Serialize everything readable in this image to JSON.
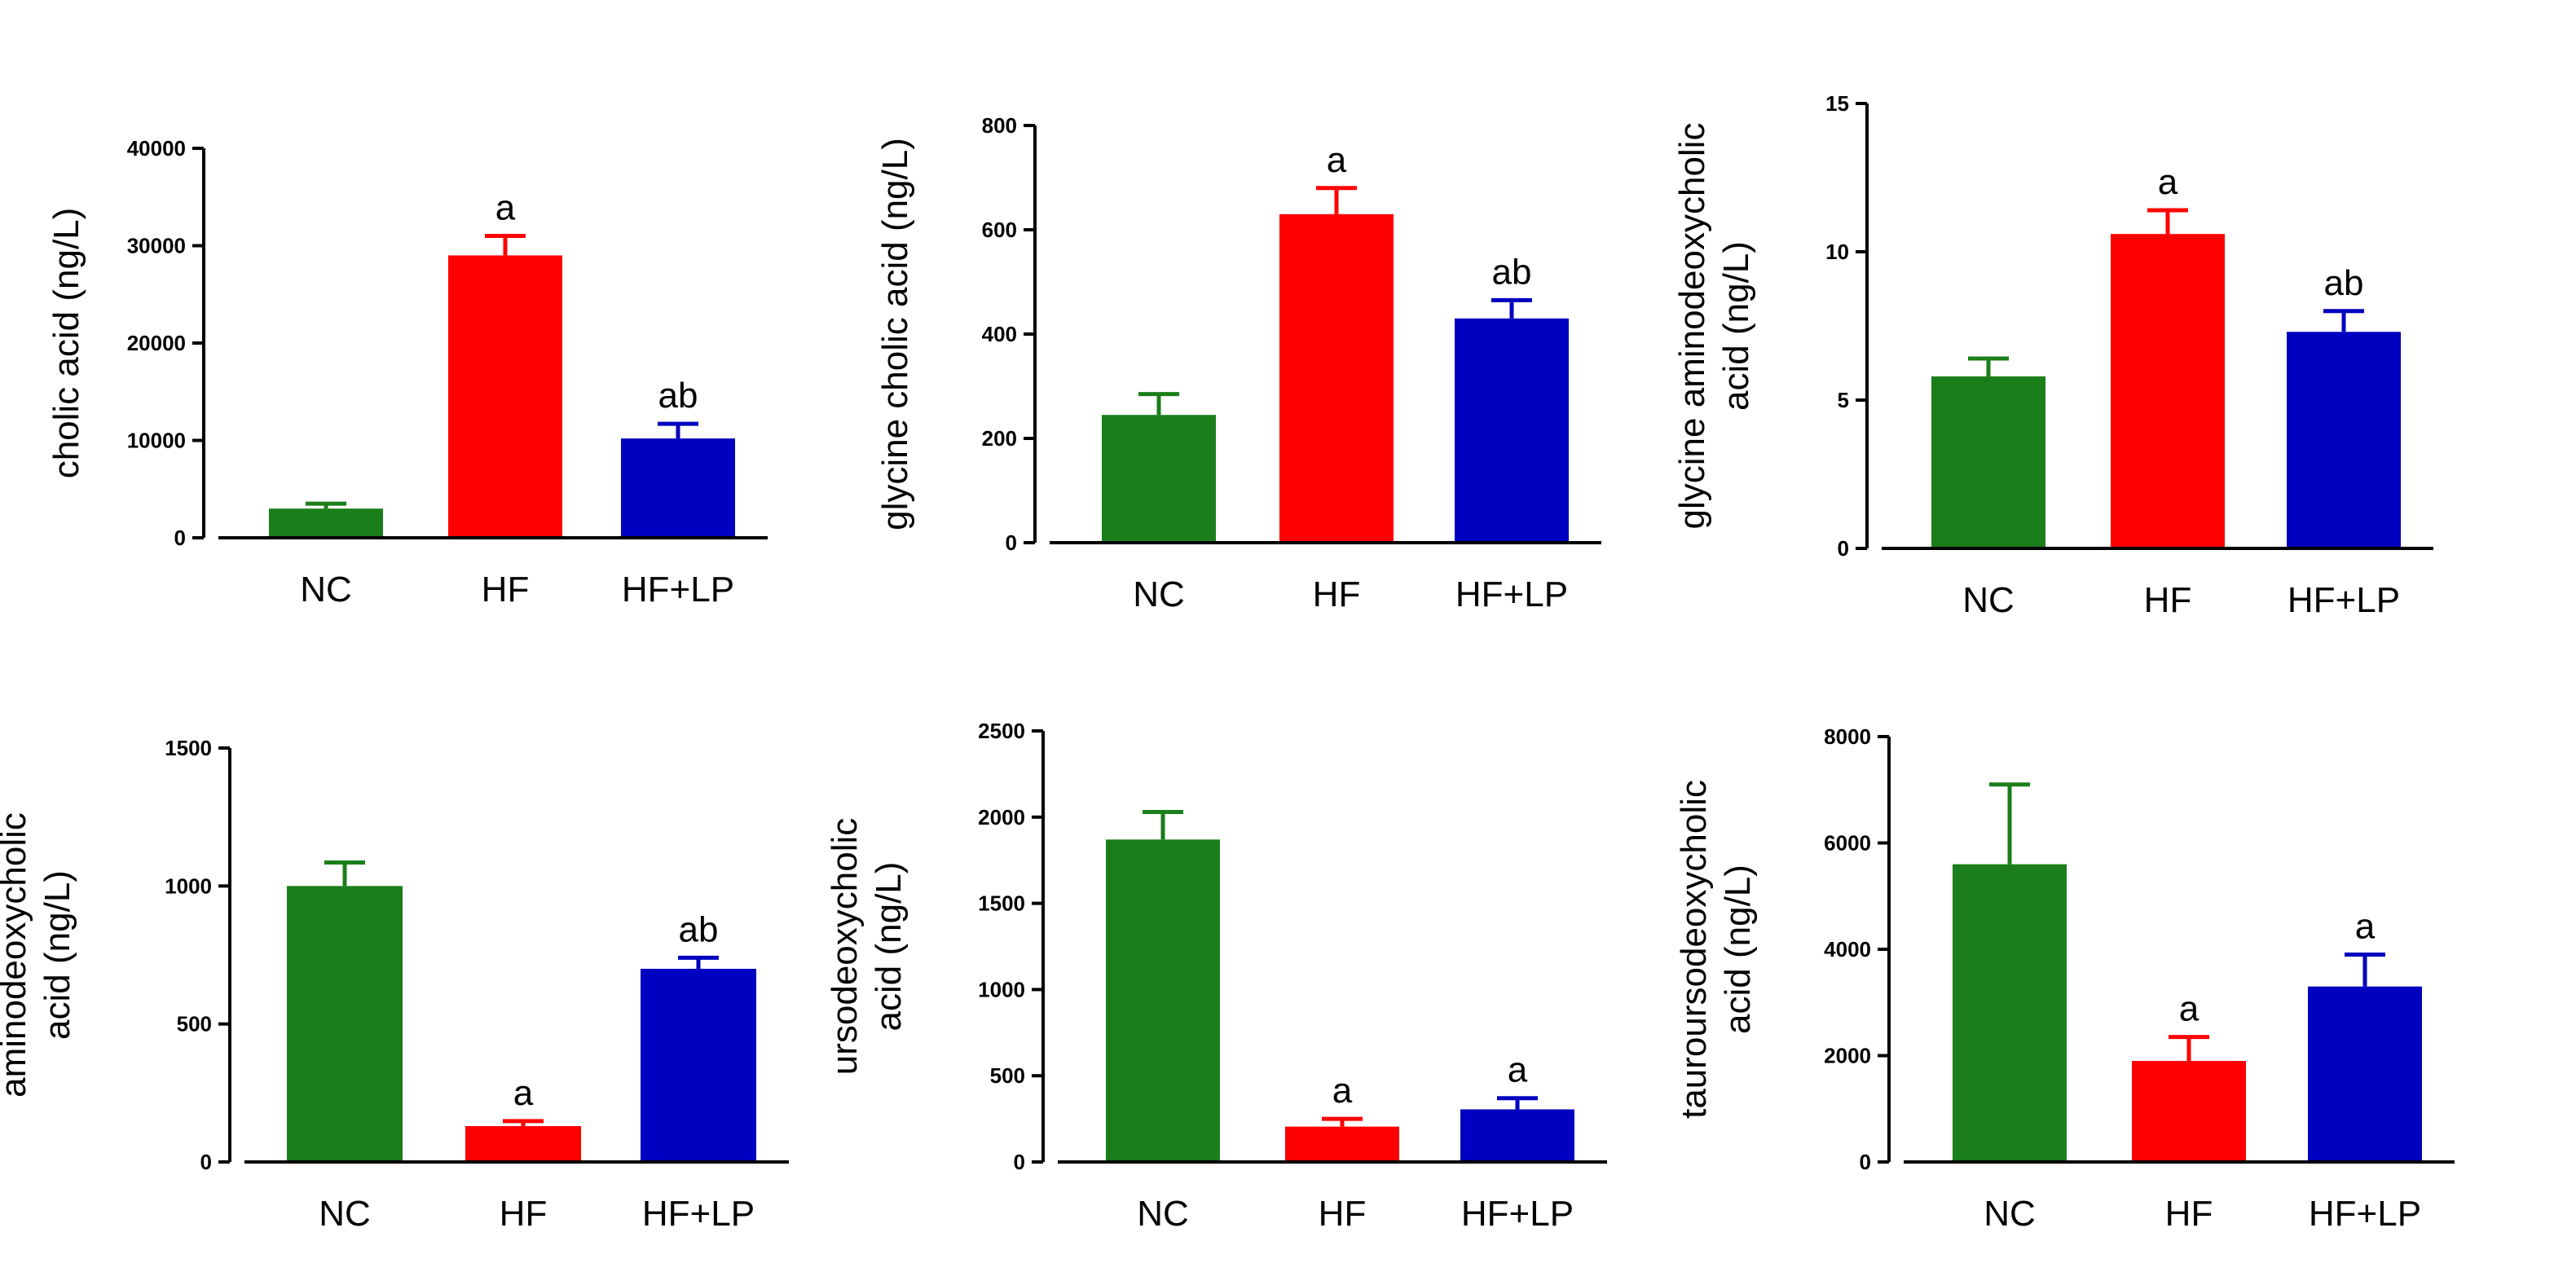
{
  "chart_data": [
    {
      "type": "bar",
      "ylabel": [
        "cholic acid (ng/L)"
      ],
      "categories": [
        "NC",
        "HF",
        "HF+LP"
      ],
      "values": [
        3000,
        29000,
        10200
      ],
      "errors": [
        500,
        2000,
        1500
      ],
      "annotations": [
        "",
        "a",
        "ab"
      ],
      "colors": [
        "#1a7f1a",
        "#ff0000",
        "#0000c0"
      ],
      "ylim": [
        0,
        40000
      ],
      "yticks": [
        0,
        10000,
        20000,
        30000,
        40000
      ]
    },
    {
      "type": "bar",
      "ylabel": [
        "glycine cholic acid (ng/L)"
      ],
      "categories": [
        "NC",
        "HF",
        "HF+LP"
      ],
      "values": [
        245,
        630,
        430
      ],
      "errors": [
        40,
        50,
        35
      ],
      "annotations": [
        "",
        "a",
        "ab"
      ],
      "colors": [
        "#1a7f1a",
        "#ff0000",
        "#0000c0"
      ],
      "ylim": [
        0,
        800
      ],
      "yticks": [
        0,
        200,
        400,
        600,
        800
      ]
    },
    {
      "type": "bar",
      "ylabel": [
        "glycine aminodeoxycholic",
        "acid (ng/L)"
      ],
      "categories": [
        "NC",
        "HF",
        "HF+LP"
      ],
      "values": [
        5.8,
        10.6,
        7.3
      ],
      "errors": [
        0.6,
        0.8,
        0.7
      ],
      "annotations": [
        "",
        "a",
        "ab"
      ],
      "colors": [
        "#1a7f1a",
        "#ff0000",
        "#0000c0"
      ],
      "ylim": [
        0,
        15
      ],
      "yticks": [
        0,
        5,
        10,
        15
      ]
    },
    {
      "type": "bar",
      "ylabel": [
        "aminodeoxycholic",
        "acid (ng/L)"
      ],
      "categories": [
        "NC",
        "HF",
        "HF+LP"
      ],
      "values": [
        1000,
        130,
        700
      ],
      "errors": [
        85,
        18,
        40
      ],
      "annotations": [
        "",
        "a",
        "ab"
      ],
      "colors": [
        "#1a7f1a",
        "#ff0000",
        "#0000c0"
      ],
      "ylim": [
        0,
        1500
      ],
      "yticks": [
        0,
        500,
        1000,
        1500
      ]
    },
    {
      "type": "bar",
      "ylabel": [
        "ursodeoxycholic",
        "acid (ng/L)"
      ],
      "categories": [
        "NC",
        "HF",
        "HF+LP"
      ],
      "values": [
        1870,
        205,
        305
      ],
      "errors": [
        160,
        45,
        65
      ],
      "annotations": [
        "",
        "a",
        "a"
      ],
      "colors": [
        "#1a7f1a",
        "#ff0000",
        "#0000c0"
      ],
      "ylim": [
        0,
        2500
      ],
      "yticks": [
        0,
        500,
        1000,
        1500,
        2000,
        2500
      ]
    },
    {
      "type": "bar",
      "ylabel": [
        "tauroursodeoxycholic",
        "acid (ng/L)"
      ],
      "categories": [
        "NC",
        "HF",
        "HF+LP"
      ],
      "values": [
        5600,
        1900,
        3300
      ],
      "errors": [
        1500,
        450,
        600
      ],
      "annotations": [
        "",
        "a",
        "a"
      ],
      "colors": [
        "#1a7f1a",
        "#ff0000",
        "#0000c0"
      ],
      "ylim": [
        0,
        8000
      ],
      "yticks": [
        0,
        2000,
        4000,
        6000,
        8000
      ]
    }
  ]
}
